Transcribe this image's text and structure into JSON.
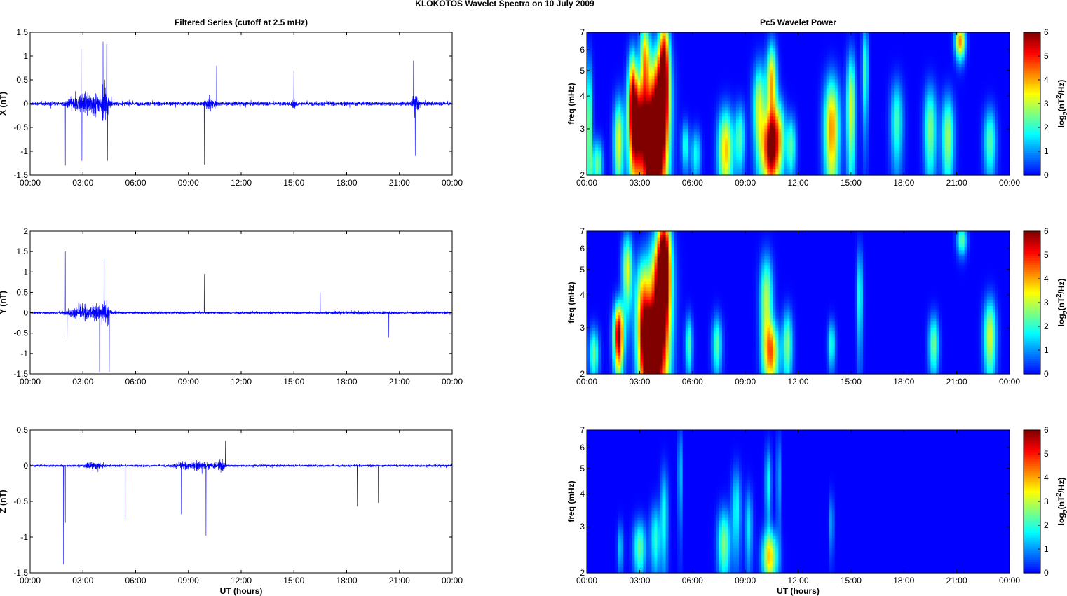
{
  "figure_title": "KLOKOTOS Wavelet Spectra on 10 July      2009",
  "chart_data": [
    {
      "type": "line",
      "title": "Filtered Series (cutoff at 2.5 mHz)",
      "xlabel": "",
      "ylabel": "X (nT)",
      "xlim": [
        0,
        24
      ],
      "ylim": [
        -1.5,
        1.5
      ],
      "xticks": [
        "00:00",
        "03:00",
        "06:00",
        "09:00",
        "12:00",
        "15:00",
        "18:00",
        "21:00",
        "00:00"
      ],
      "yticks": [
        -1.5,
        -1,
        -0.5,
        0,
        0.5,
        1,
        1.5
      ],
      "line_color": "#0000ff",
      "activity": [
        {
          "t0": 0.0,
          "t1": 24.0,
          "amp": 0.1
        },
        {
          "t0": 1.7,
          "t1": 5.0,
          "amp": 0.55
        },
        {
          "t0": 3.9,
          "t1": 4.6,
          "amp": 0.95
        },
        {
          "t0": 9.7,
          "t1": 10.8,
          "amp": 0.35
        },
        {
          "t0": 14.8,
          "t1": 15.2,
          "amp": 0.3
        },
        {
          "t0": 21.6,
          "t1": 22.2,
          "amp": 0.45
        }
      ],
      "spikes": [
        {
          "t": 2.0,
          "v": -1.3
        },
        {
          "t": 2.9,
          "v": 1.15
        },
        {
          "t": 2.95,
          "v": -1.2
        },
        {
          "t": 4.15,
          "v": 1.3
        },
        {
          "t": 4.35,
          "v": 1.25
        },
        {
          "t": 4.4,
          "v": -1.2
        },
        {
          "t": 9.9,
          "v": -1.28
        },
        {
          "t": 10.6,
          "v": 0.8
        },
        {
          "t": 15.0,
          "v": 0.7
        },
        {
          "t": 21.8,
          "v": 0.9
        },
        {
          "t": 21.9,
          "v": -1.1
        }
      ]
    },
    {
      "type": "heatmap",
      "title": "Pc5 Wavelet Power",
      "xlabel": "",
      "ylabel": "freq (mHz)",
      "colorbar_label": "log2(nT2/Hz)",
      "xlim": [
        0,
        24
      ],
      "ylim": [
        2,
        7
      ],
      "yscale": "log",
      "zlim": [
        0,
        6
      ],
      "xticks": [
        "00:00",
        "03:00",
        "06:00",
        "09:00",
        "12:00",
        "15:00",
        "18:00",
        "21:00",
        "00:00"
      ],
      "yticks": [
        2,
        3,
        4,
        5,
        6,
        7
      ],
      "cticks": [
        0,
        1,
        2,
        3,
        4,
        5,
        6
      ],
      "colormap": "jet",
      "blobs": [
        {
          "t": 0.15,
          "f": 3.0,
          "w": 0.12,
          "h": 1.6,
          "p": 2.8
        },
        {
          "t": 0.6,
          "f": 2.2,
          "w": 0.2,
          "h": 0.35,
          "p": 2.5
        },
        {
          "t": 1.8,
          "f": 2.7,
          "w": 0.2,
          "h": 0.8,
          "p": 3.2
        },
        {
          "t": 2.6,
          "f": 4.2,
          "w": 0.18,
          "h": 1.2,
          "p": 4.2
        },
        {
          "t": 2.9,
          "f": 3.0,
          "w": 0.35,
          "h": 1.0,
          "p": 6.0
        },
        {
          "t": 3.3,
          "f": 5.5,
          "w": 0.2,
          "h": 1.5,
          "p": 3.8
        },
        {
          "t": 3.7,
          "f": 2.5,
          "w": 0.3,
          "h": 0.8,
          "p": 6.5
        },
        {
          "t": 4.1,
          "f": 3.5,
          "w": 0.4,
          "h": 1.6,
          "p": 6.5
        },
        {
          "t": 4.4,
          "f": 5.5,
          "w": 0.2,
          "h": 1.8,
          "p": 4.5
        },
        {
          "t": 5.6,
          "f": 2.6,
          "w": 0.15,
          "h": 0.4,
          "p": 2.0
        },
        {
          "t": 6.2,
          "f": 2.4,
          "w": 0.2,
          "h": 0.4,
          "p": 1.8
        },
        {
          "t": 7.9,
          "f": 2.5,
          "w": 0.3,
          "h": 0.7,
          "p": 3.8
        },
        {
          "t": 8.7,
          "f": 2.8,
          "w": 0.2,
          "h": 0.6,
          "p": 2.2
        },
        {
          "t": 9.8,
          "f": 3.6,
          "w": 0.25,
          "h": 1.1,
          "p": 3.2
        },
        {
          "t": 10.4,
          "f": 2.5,
          "w": 0.3,
          "h": 0.6,
          "p": 5.2
        },
        {
          "t": 10.5,
          "f": 4.5,
          "w": 0.2,
          "h": 1.2,
          "p": 4.0
        },
        {
          "t": 10.9,
          "f": 2.8,
          "w": 0.25,
          "h": 0.7,
          "p": 3.2
        },
        {
          "t": 11.6,
          "f": 2.6,
          "w": 0.2,
          "h": 0.5,
          "p": 2.3
        },
        {
          "t": 13.9,
          "f": 3.0,
          "w": 0.3,
          "h": 1.1,
          "p": 4.2
        },
        {
          "t": 15.0,
          "f": 3.6,
          "w": 0.18,
          "h": 1.4,
          "p": 3.2
        },
        {
          "t": 15.8,
          "f": 5.0,
          "w": 0.12,
          "h": 1.6,
          "p": 2.2
        },
        {
          "t": 17.6,
          "f": 3.2,
          "w": 0.25,
          "h": 0.9,
          "p": 2.2
        },
        {
          "t": 19.5,
          "f": 3.0,
          "w": 0.25,
          "h": 0.9,
          "p": 2.6
        },
        {
          "t": 20.5,
          "f": 2.8,
          "w": 0.25,
          "h": 0.8,
          "p": 2.8
        },
        {
          "t": 21.2,
          "f": 6.5,
          "w": 0.2,
          "h": 0.7,
          "p": 4.2
        },
        {
          "t": 22.9,
          "f": 2.7,
          "w": 0.25,
          "h": 0.6,
          "p": 2.3
        }
      ]
    },
    {
      "type": "line",
      "title": "",
      "xlabel": "",
      "ylabel": "Y (nT)",
      "xlim": [
        0,
        24
      ],
      "ylim": [
        -1.5,
        2
      ],
      "xticks": [
        "00:00",
        "03:00",
        "06:00",
        "09:00",
        "12:00",
        "15:00",
        "18:00",
        "21:00",
        "00:00"
      ],
      "yticks": [
        -1.5,
        -1,
        -0.5,
        0,
        0.5,
        1,
        1.5,
        2
      ],
      "line_color": "#0000ff",
      "activity": [
        {
          "t0": 0.0,
          "t1": 24.0,
          "amp": 0.07
        },
        {
          "t0": 1.7,
          "t1": 5.0,
          "amp": 0.45
        },
        {
          "t0": 4.0,
          "t1": 4.6,
          "amp": 0.85
        },
        {
          "t0": 14.0,
          "t1": 24.0,
          "amp": 0.1
        }
      ],
      "spikes": [
        {
          "t": 2.0,
          "v": 1.5
        },
        {
          "t": 2.1,
          "v": -0.7
        },
        {
          "t": 3.95,
          "v": -1.45
        },
        {
          "t": 4.2,
          "v": 1.3
        },
        {
          "t": 4.5,
          "v": -1.45
        },
        {
          "t": 9.9,
          "v": 0.95
        },
        {
          "t": 16.5,
          "v": 0.5
        },
        {
          "t": 20.4,
          "v": -0.6
        }
      ]
    },
    {
      "type": "heatmap",
      "title": "",
      "xlabel": "",
      "ylabel": "freq (mHz)",
      "colorbar_label": "log2(nT2/Hz)",
      "xlim": [
        0,
        24
      ],
      "ylim": [
        2,
        7
      ],
      "yscale": "log",
      "zlim": [
        0,
        6
      ],
      "xticks": [
        "00:00",
        "03:00",
        "06:00",
        "09:00",
        "12:00",
        "15:00",
        "18:00",
        "21:00",
        "00:00"
      ],
      "yticks": [
        2,
        3,
        4,
        5,
        6,
        7
      ],
      "cticks": [
        0,
        1,
        2,
        3,
        4,
        5,
        6
      ],
      "colormap": "jet",
      "blobs": [
        {
          "t": 0.4,
          "f": 2.4,
          "w": 0.2,
          "h": 0.4,
          "p": 2.4
        },
        {
          "t": 1.8,
          "f": 2.8,
          "w": 0.2,
          "h": 0.6,
          "p": 6.2
        },
        {
          "t": 2.3,
          "f": 5.0,
          "w": 0.2,
          "h": 1.2,
          "p": 3.2
        },
        {
          "t": 3.2,
          "f": 3.5,
          "w": 0.3,
          "h": 1.3,
          "p": 4.2
        },
        {
          "t": 3.6,
          "f": 2.5,
          "w": 0.35,
          "h": 0.7,
          "p": 6.5
        },
        {
          "t": 4.2,
          "f": 3.8,
          "w": 0.4,
          "h": 1.8,
          "p": 6.8
        },
        {
          "t": 4.4,
          "f": 6.0,
          "w": 0.25,
          "h": 1.6,
          "p": 4.5
        },
        {
          "t": 5.8,
          "f": 2.6,
          "w": 0.15,
          "h": 0.5,
          "p": 2.2
        },
        {
          "t": 7.4,
          "f": 2.6,
          "w": 0.2,
          "h": 0.5,
          "p": 2.3
        },
        {
          "t": 10.2,
          "f": 3.8,
          "w": 0.25,
          "h": 1.2,
          "p": 3.0
        },
        {
          "t": 10.5,
          "f": 2.4,
          "w": 0.3,
          "h": 0.5,
          "p": 3.8
        },
        {
          "t": 11.4,
          "f": 2.6,
          "w": 0.2,
          "h": 0.6,
          "p": 2.6
        },
        {
          "t": 13.9,
          "f": 2.6,
          "w": 0.15,
          "h": 0.4,
          "p": 2.0
        },
        {
          "t": 15.5,
          "f": 4.0,
          "w": 0.12,
          "h": 1.3,
          "p": 2.0
        },
        {
          "t": 19.7,
          "f": 2.6,
          "w": 0.2,
          "h": 0.5,
          "p": 2.5
        },
        {
          "t": 21.3,
          "f": 6.5,
          "w": 0.2,
          "h": 0.6,
          "p": 2.4
        },
        {
          "t": 22.9,
          "f": 2.8,
          "w": 0.25,
          "h": 0.7,
          "p": 3.2
        }
      ]
    },
    {
      "type": "line",
      "title": "",
      "xlabel": "UT (hours)",
      "ylabel": "Z (nT)",
      "xlim": [
        0,
        24
      ],
      "ylim": [
        -1.5,
        0.5
      ],
      "xticks": [
        "00:00",
        "03:00",
        "06:00",
        "09:00",
        "12:00",
        "15:00",
        "18:00",
        "21:00",
        "00:00"
      ],
      "yticks": [
        -1.5,
        -1,
        -0.5,
        0,
        0.5
      ],
      "line_color": "#0000ff",
      "activity": [
        {
          "t0": 0.0,
          "t1": 24.0,
          "amp": 0.04
        },
        {
          "t0": 2.8,
          "t1": 4.5,
          "amp": 0.12
        },
        {
          "t0": 7.5,
          "t1": 11.5,
          "amp": 0.14
        },
        {
          "t0": 10.5,
          "t1": 11.2,
          "amp": 0.22
        }
      ],
      "spikes": [
        {
          "t": 1.9,
          "v": -1.38
        },
        {
          "t": 2.0,
          "v": -0.8
        },
        {
          "t": 5.4,
          "v": -0.75
        },
        {
          "t": 8.6,
          "v": -0.68
        },
        {
          "t": 10.0,
          "v": -0.98
        },
        {
          "t": 11.1,
          "v": 0.35
        },
        {
          "t": 18.6,
          "v": -0.57
        },
        {
          "t": 19.8,
          "v": -0.52
        }
      ]
    },
    {
      "type": "heatmap",
      "title": "",
      "xlabel": "UT (hours)",
      "ylabel": "freq (mHz)",
      "colorbar_label": "log2(nT2/Hz)",
      "xlim": [
        0,
        24
      ],
      "ylim": [
        2,
        7
      ],
      "yscale": "log",
      "zlim": [
        0,
        6
      ],
      "xticks": [
        "00:00",
        "03:00",
        "06:00",
        "09:00",
        "12:00",
        "15:00",
        "18:00",
        "21:00",
        "00:00"
      ],
      "yticks": [
        2,
        3,
        4,
        5,
        6,
        7
      ],
      "cticks": [
        0,
        1,
        2,
        3,
        4,
        5,
        6
      ],
      "colormap": "jet",
      "blobs": [
        {
          "t": 1.9,
          "f": 2.5,
          "w": 0.12,
          "h": 0.4,
          "p": 1.5
        },
        {
          "t": 3.0,
          "f": 2.5,
          "w": 0.25,
          "h": 0.45,
          "p": 2.4
        },
        {
          "t": 3.9,
          "f": 2.7,
          "w": 0.2,
          "h": 0.6,
          "p": 2.0
        },
        {
          "t": 4.4,
          "f": 3.3,
          "w": 0.15,
          "h": 1.1,
          "p": 1.8
        },
        {
          "t": 5.3,
          "f": 4.8,
          "w": 0.08,
          "h": 1.5,
          "p": 1.6
        },
        {
          "t": 7.8,
          "f": 2.6,
          "w": 0.25,
          "h": 0.6,
          "p": 2.6
        },
        {
          "t": 8.5,
          "f": 3.5,
          "w": 0.18,
          "h": 1.0,
          "p": 1.8
        },
        {
          "t": 9.2,
          "f": 3.0,
          "w": 0.15,
          "h": 0.8,
          "p": 1.6
        },
        {
          "t": 10.4,
          "f": 2.3,
          "w": 0.3,
          "h": 0.4,
          "p": 3.6
        },
        {
          "t": 10.3,
          "f": 4.4,
          "w": 0.12,
          "h": 1.1,
          "p": 1.8
        },
        {
          "t": 10.9,
          "f": 4.6,
          "w": 0.08,
          "h": 1.4,
          "p": 1.4
        },
        {
          "t": 13.9,
          "f": 3.1,
          "w": 0.08,
          "h": 0.6,
          "p": 1.4
        }
      ]
    }
  ]
}
